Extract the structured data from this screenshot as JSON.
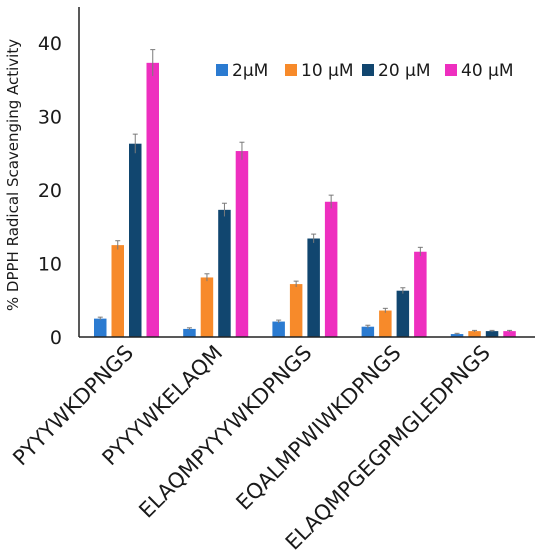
{
  "chart_data": {
    "type": "bar",
    "title": "",
    "xlabel": "",
    "ylabel": "% DPPH Radical Scavenging Activity",
    "ylim": [
      0,
      45
    ],
    "yticks": [
      0,
      10,
      20,
      30,
      40
    ],
    "grid": false,
    "legend_position": "top-right",
    "categories": [
      "PYYYWKDPNGS",
      "PYYYWKELAQM",
      "ELAQMPYYYWKDPNGS",
      "EQALMPWIWKDPNGS",
      "ELAQMPGEGPMGLEDPNGS"
    ],
    "series": [
      {
        "name": "2μM",
        "color": "#2b7bd1",
        "values": [
          2.5,
          1.1,
          2.1,
          1.4,
          0.4
        ],
        "errors": [
          0.2,
          0.15,
          0.2,
          0.2,
          0.1
        ]
      },
      {
        "name": "10 μM",
        "color": "#f78a2a",
        "values": [
          12.5,
          8.1,
          7.2,
          3.6,
          0.8
        ],
        "errors": [
          0.6,
          0.5,
          0.4,
          0.3,
          0.1
        ]
      },
      {
        "name": "20 μM",
        "color": "#11466f",
        "values": [
          26.3,
          17.3,
          13.4,
          6.3,
          0.8
        ],
        "errors": [
          1.3,
          0.9,
          0.6,
          0.4,
          0.1
        ]
      },
      {
        "name": "40 μM",
        "color": "#ee2fbf",
        "values": [
          37.3,
          25.3,
          18.4,
          11.6,
          0.8
        ],
        "errors": [
          1.8,
          1.2,
          0.9,
          0.6,
          0.1
        ]
      }
    ]
  }
}
